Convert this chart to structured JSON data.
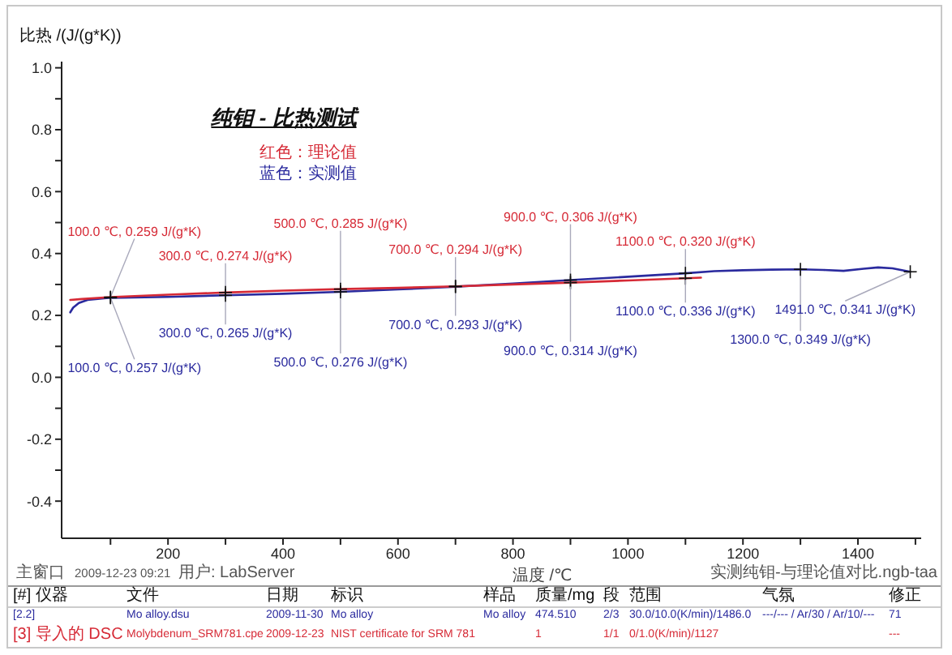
{
  "chart_data": {
    "type": "line",
    "title": "纯钼 - 比热测试",
    "xlabel": "温度 /℃",
    "ylabel": "比热 /(J/(g*K))",
    "series": [
      {
        "name": "红色：理论值",
        "color": "#d62a36",
        "x": [
          30,
          50,
          100,
          200,
          300,
          400,
          500,
          600,
          700,
          800,
          900,
          1000,
          1100,
          1127
        ],
        "values": [
          0.25,
          0.253,
          0.259,
          0.267,
          0.274,
          0.28,
          0.285,
          0.289,
          0.294,
          0.3,
          0.306,
          0.313,
          0.32,
          0.322
        ]
      },
      {
        "name": "蓝色：实测值",
        "color": "#2a2a9e",
        "x": [
          30,
          35,
          45,
          60,
          100,
          200,
          300,
          400,
          500,
          600,
          700,
          800,
          900,
          1000,
          1100,
          1150,
          1200,
          1250,
          1300,
          1340,
          1375,
          1410,
          1435,
          1460,
          1491
        ],
        "values": [
          0.21,
          0.225,
          0.24,
          0.25,
          0.257,
          0.26,
          0.265,
          0.27,
          0.276,
          0.284,
          0.293,
          0.303,
          0.314,
          0.325,
          0.336,
          0.343,
          0.346,
          0.348,
          0.349,
          0.347,
          0.344,
          0.351,
          0.355,
          0.352,
          0.341
        ]
      }
    ],
    "xlim": [
      15,
      1510
    ],
    "xticks": [
      {
        "value": 100,
        "label": null
      },
      200,
      {
        "value": 300,
        "label": null
      },
      400,
      {
        "value": 500,
        "label": null
      },
      600,
      {
        "value": 700,
        "label": null
      },
      800,
      {
        "value": 900,
        "label": null
      },
      1000,
      {
        "value": 1100,
        "label": null
      },
      1200,
      {
        "value": 1300,
        "label": null
      },
      1400,
      {
        "value": 1500,
        "label": null
      }
    ],
    "ylim": [
      -0.52,
      1.02
    ],
    "yticks": [
      -0.4,
      {
        "value": -0.3,
        "label": null
      },
      -0.2,
      {
        "value": -0.1,
        "label": null
      },
      {
        "value": 0,
        "label": "0.0"
      },
      {
        "value": 0.1,
        "label": null
      },
      0.2,
      {
        "value": 0.3,
        "label": null
      },
      0.4,
      {
        "value": 0.5,
        "label": null
      },
      0.6,
      {
        "value": 0.7,
        "label": null
      },
      0.8,
      {
        "value": 0.9,
        "label": null
      },
      {
        "value": 1,
        "label": "1.0"
      }
    ],
    "legend": "top left",
    "annotations": [
      {
        "text": "100.0 ℃, 0.259 J/(g*K)",
        "x": 100,
        "y": 0.259
      },
      {
        "text": "300.0 ℃, 0.274 J/(g*K)",
        "x": 300,
        "y": 0.274
      },
      {
        "text": "500.0 ℃, 0.285 J/(g*K)",
        "x": 500,
        "y": 0.285
      },
      {
        "text": "700.0 ℃, 0.294 J/(g*K)",
        "x": 700,
        "y": 0.294
      },
      {
        "text": "900.0 ℃, 0.306 J/(g*K)",
        "x": 900,
        "y": 0.306
      },
      {
        "text": "1100.0 ℃, 0.320 J/(g*K)",
        "x": 1100,
        "y": 0.32
      },
      {
        "text": "100.0 ℃, 0.257 J/(g*K)",
        "x": 100,
        "y": 0.257
      },
      {
        "text": "300.0 ℃, 0.265 J/(g*K)",
        "x": 300,
        "y": 0.265
      },
      {
        "text": "500.0 ℃, 0.276 J/(g*K)",
        "x": 500,
        "y": 0.276
      },
      {
        "text": "700.0 ℃, 0.293 J/(g*K)",
        "x": 700,
        "y": 0.293
      },
      {
        "text": "900.0 ℃, 0.314 J/(g*K)",
        "x": 900,
        "y": 0.314
      },
      {
        "text": "1100.0 ℃, 0.336 J/(g*K)",
        "x": 1100,
        "y": 0.336
      },
      {
        "text": "1300.0 ℃, 0.349 J/(g*K)",
        "x": 1300,
        "y": 0.349
      },
      {
        "text": "1491.0 ℃, 0.341 J/(g*K)",
        "x": 1491,
        "y": 0.341
      },
      "主窗口",
      "2009-12-23 09:21",
      "用户: LabServer",
      "实测纯钼-与理论值对比.ngb-taa",
      "[#] 仪器",
      "文件",
      "日期",
      "标识",
      "样品",
      "质量/mg",
      "段",
      "范围",
      "气氛",
      "修正",
      "[2.2]",
      "Mo alloy.dsu",
      "2009-11-30",
      "Mo alloy",
      "Mo alloy",
      "474.510",
      "2/3",
      "30.0/10.0(K/min)/1486.0",
      "---/--- / Ar/30 / Ar/10/---",
      "71",
      "[3] 导入的 DSC",
      "Molybdenum_SRM781.cpe",
      "2009-12-23",
      "NIST certificate for SRM 781",
      "1",
      "1/1",
      "0/1.0(K/min)/1127",
      "---"
    ]
  }
}
